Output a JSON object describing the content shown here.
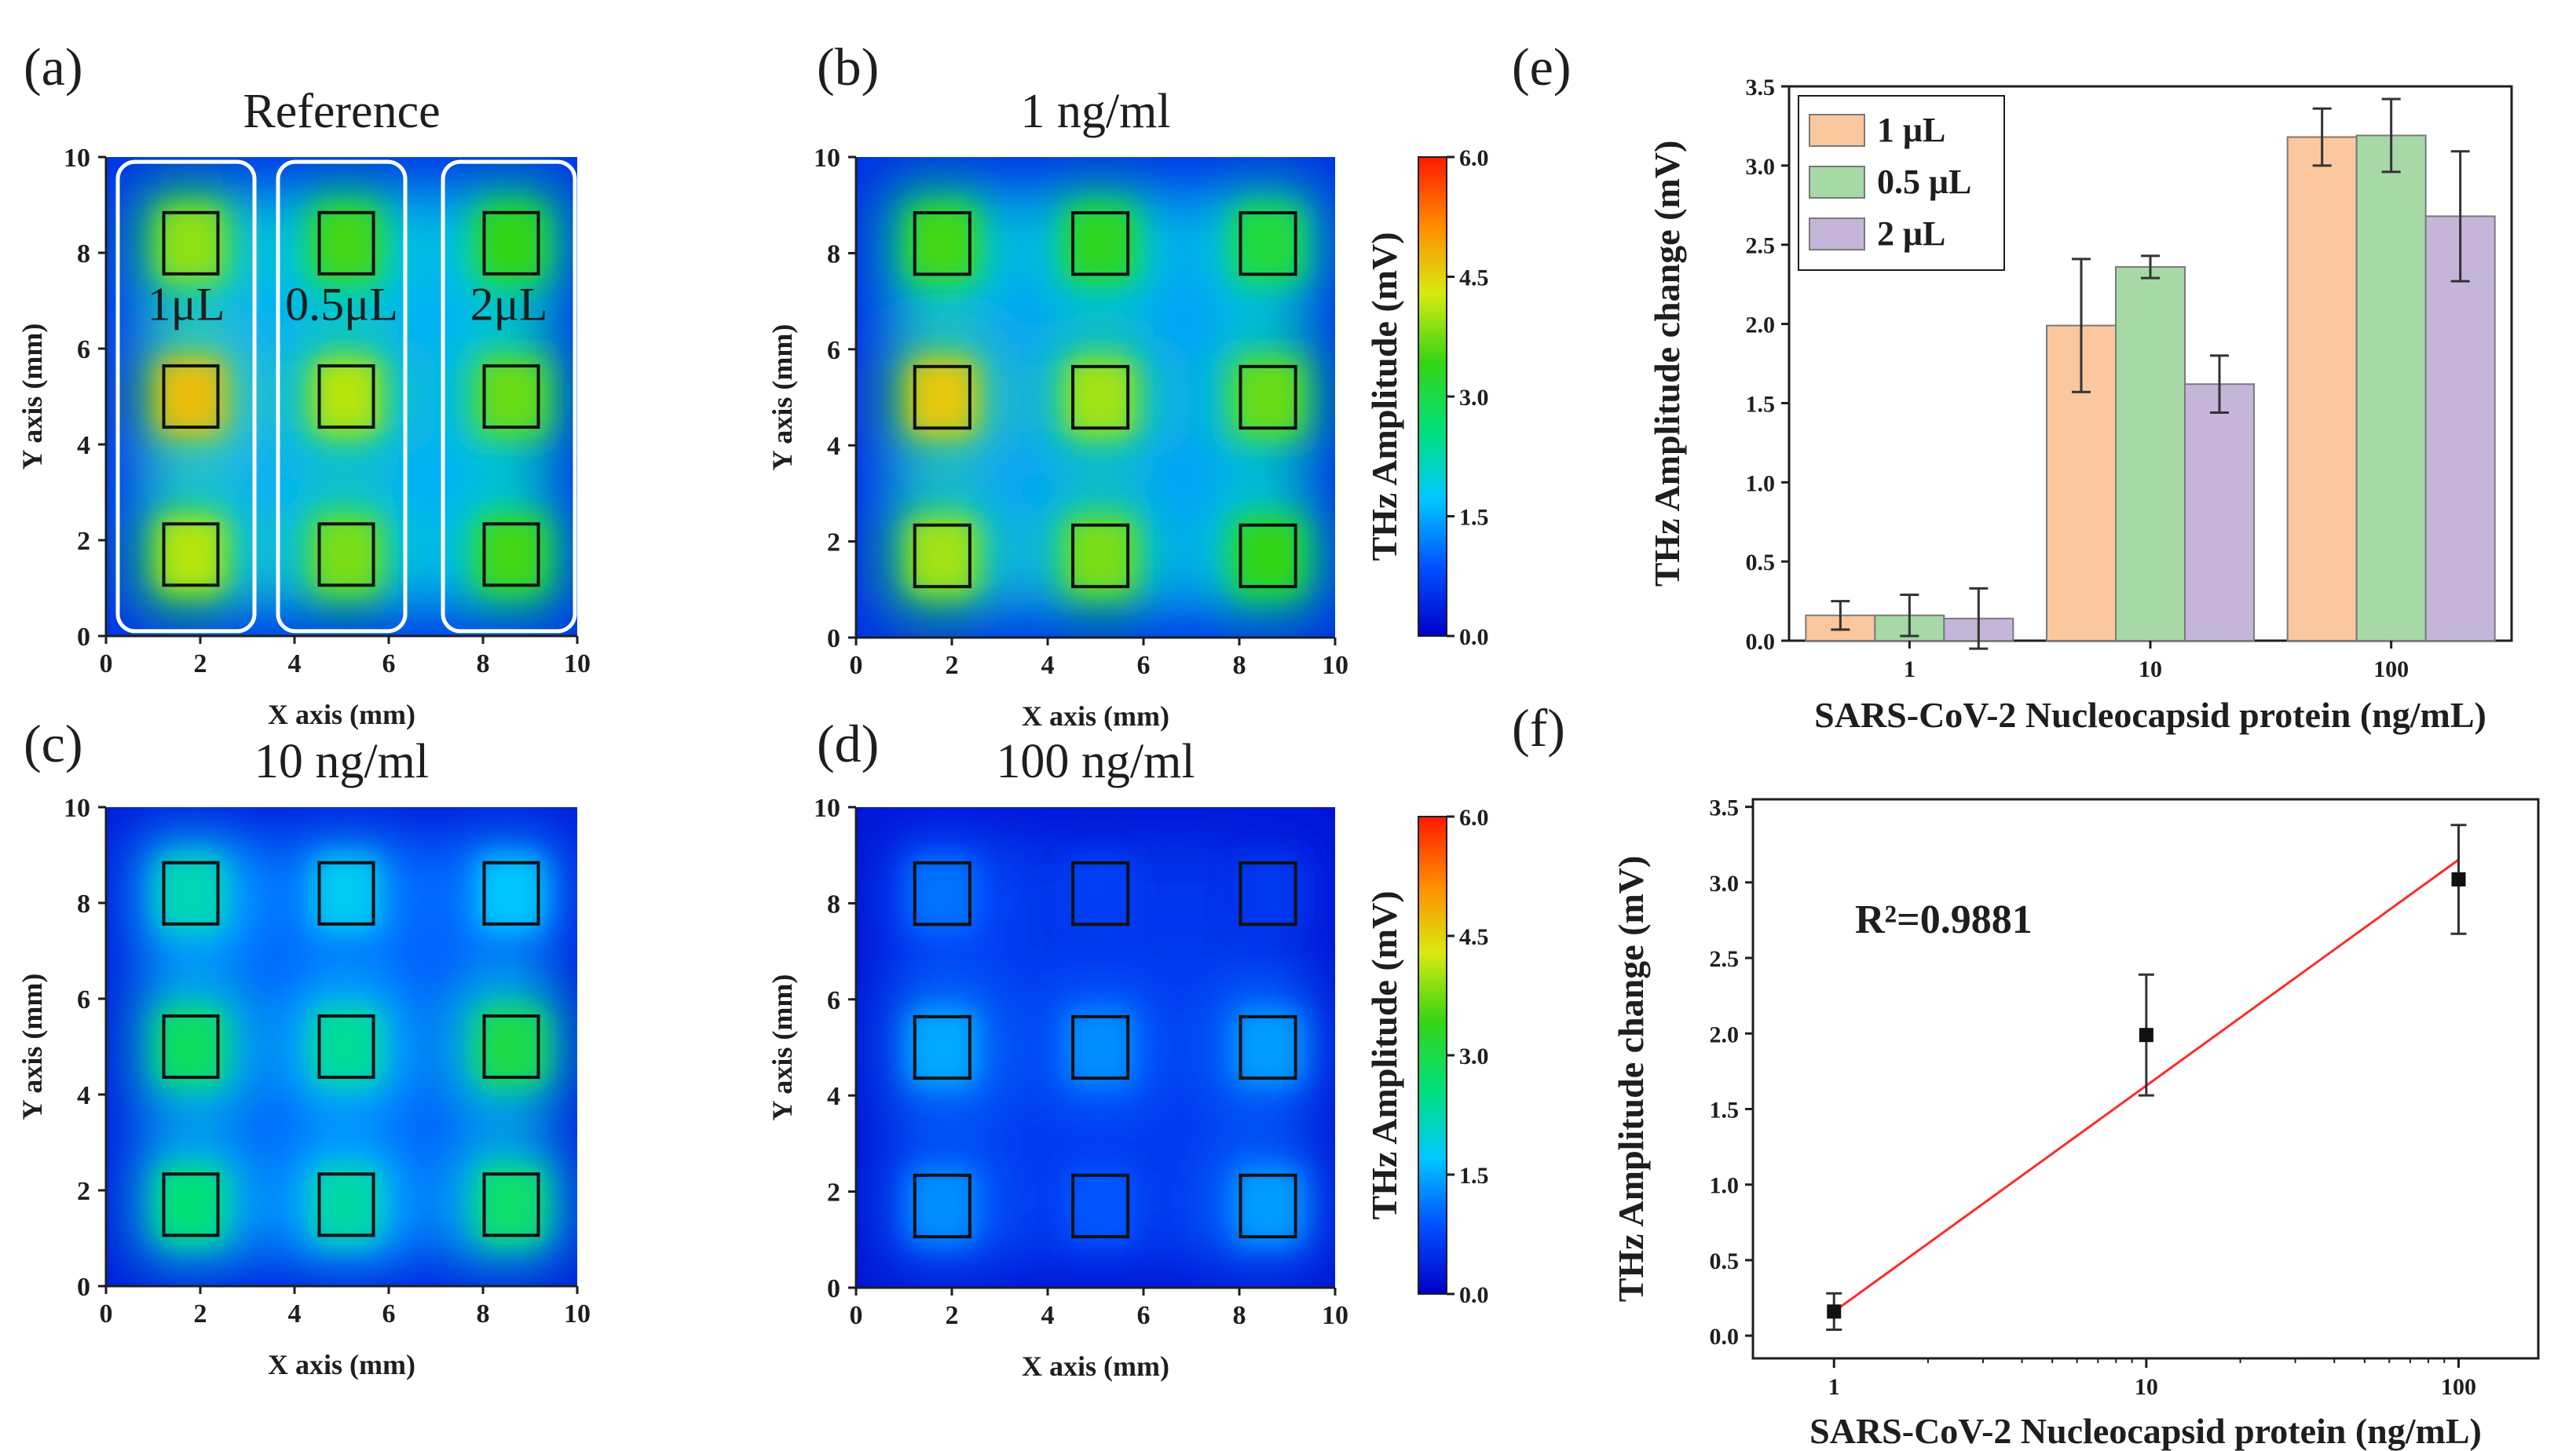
{
  "figure": {
    "panel_labels": {
      "a": "(a)",
      "b": "(b)",
      "c": "(c)",
      "d": "(d)",
      "e": "(e)",
      "f": "(f)"
    },
    "colorbar": {
      "label": "THz Amplitude (mV)",
      "ticks": [
        "6.0",
        "4.5",
        "3.0",
        "1.5",
        "0.0"
      ],
      "colors": [
        "#0000c8",
        "#0050ff",
        "#00c8ff",
        "#00e07a",
        "#35d415",
        "#d8ea10",
        "#ff8c00",
        "#ff1a00"
      ]
    }
  },
  "chart_data": [
    {
      "type": "heatmap",
      "panel": "a",
      "title": "Reference",
      "xlabel": "X axis (mm)",
      "ylabel": "Y axis (mm)",
      "xlim": [
        0,
        10
      ],
      "ylim": [
        0,
        10
      ],
      "xticks": [
        "0",
        "2",
        "4",
        "6",
        "8",
        "10"
      ],
      "yticks": [
        "0",
        "2",
        "4",
        "6",
        "8",
        "10"
      ],
      "group_labels": [
        "1μL",
        "0.5μL",
        "2μL"
      ],
      "spot_x": [
        1.8,
        5.1,
        8.6
      ],
      "spot_y": [
        8.2,
        5.0,
        1.7
      ],
      "spot_amplitude": [
        [
          3.9,
          3.5,
          3.4
        ],
        [
          4.7,
          4.1,
          3.7
        ],
        [
          4.1,
          3.8,
          3.5
        ]
      ],
      "background_amplitude": 1.5
    },
    {
      "type": "heatmap",
      "panel": "b",
      "title": "1 ng/ml",
      "xlabel": "X axis (mm)",
      "ylabel": "Y axis (mm)",
      "xlim": [
        0,
        10
      ],
      "ylim": [
        0,
        10
      ],
      "xticks": [
        "0",
        "2",
        "4",
        "6",
        "8",
        "10"
      ],
      "yticks": [
        "0",
        "2",
        "4",
        "6",
        "8",
        "10"
      ],
      "spot_x": [
        1.8,
        5.1,
        8.6
      ],
      "spot_y": [
        8.2,
        5.0,
        1.7
      ],
      "spot_amplitude": [
        [
          3.5,
          3.3,
          3.1
        ],
        [
          4.6,
          4.0,
          3.7
        ],
        [
          4.0,
          3.8,
          3.4
        ]
      ],
      "background_amplitude": 1.4
    },
    {
      "type": "heatmap",
      "panel": "c",
      "title": "10 ng/ml",
      "xlabel": "X axis (mm)",
      "ylabel": "Y axis (mm)",
      "xlim": [
        0,
        10
      ],
      "ylim": [
        0,
        10
      ],
      "xticks": [
        "0",
        "2",
        "4",
        "6",
        "8",
        "10"
      ],
      "yticks": [
        "0",
        "2",
        "4",
        "6",
        "8",
        "10"
      ],
      "spot_x": [
        1.8,
        5.1,
        8.6
      ],
      "spot_y": [
        8.2,
        5.0,
        1.7
      ],
      "spot_amplitude": [
        [
          2.2,
          1.8,
          1.7
        ],
        [
          2.8,
          2.4,
          3.0
        ],
        [
          2.6,
          2.3,
          2.7
        ]
      ],
      "background_amplitude": 0.9
    },
    {
      "type": "heatmap",
      "panel": "d",
      "title": "100 ng/ml",
      "xlabel": "X axis (mm)",
      "ylabel": "Y axis (mm)",
      "xlim": [
        0,
        10
      ],
      "ylim": [
        0,
        10
      ],
      "xticks": [
        "0",
        "2",
        "4",
        "6",
        "8",
        "10"
      ],
      "yticks": [
        "0",
        "2",
        "4",
        "6",
        "8",
        "10"
      ],
      "spot_x": [
        1.8,
        5.1,
        8.6
      ],
      "spot_y": [
        8.2,
        5.0,
        1.7
      ],
      "spot_amplitude": [
        [
          1.1,
          0.7,
          0.6
        ],
        [
          1.5,
          1.3,
          1.4
        ],
        [
          1.3,
          0.9,
          1.4
        ]
      ],
      "background_amplitude": 0.6
    },
    {
      "type": "bar",
      "panel": "e",
      "xlabel": "SARS-CoV-2 Nucleocapsid protein (ng/mL)",
      "ylabel": "THz Amplitude  change (mV)",
      "categories": [
        "1",
        "10",
        "100"
      ],
      "ylim": [
        0,
        3.5
      ],
      "yticks": [
        "0.0",
        "0.5",
        "1.0",
        "1.5",
        "2.0",
        "2.5",
        "3.0",
        "3.5"
      ],
      "legend": "top-left",
      "series": [
        {
          "name": "1 μL",
          "color": "#fbc79e",
          "values": [
            0.16,
            1.99,
            3.18
          ],
          "errors": [
            0.09,
            0.42,
            0.18
          ]
        },
        {
          "name": "0.5 μL",
          "color": "#a6d9a6",
          "values": [
            0.16,
            2.36,
            3.19
          ],
          "errors": [
            0.13,
            0.07,
            0.23
          ]
        },
        {
          "name": "2 μL",
          "color": "#c5b6d9",
          "values": [
            0.14,
            1.62,
            2.68
          ],
          "errors": [
            0.19,
            0.18,
            0.41
          ]
        }
      ]
    },
    {
      "type": "scatter",
      "panel": "f",
      "xlabel": "SARS-CoV-2 Nucleocapsid protein (ng/mL)",
      "ylabel": "THz Amplitude change (mV)",
      "x_scale": "log",
      "xlim": [
        0.55,
        180
      ],
      "ylim": [
        -0.15,
        3.55
      ],
      "xticks": [
        "1",
        "10",
        "100"
      ],
      "yticks": [
        "0.0",
        "0.5",
        "1.0",
        "1.5",
        "2.0",
        "2.5",
        "3.0",
        "3.5"
      ],
      "x": [
        1,
        10,
        100
      ],
      "y": [
        0.16,
        1.99,
        3.02
      ],
      "errors": [
        0.12,
        0.4,
        0.36
      ],
      "fit": {
        "x": [
          1,
          100
        ],
        "y": [
          0.16,
          3.15
        ],
        "color": "#ff2a2a"
      },
      "annotation": "R²=0.9881"
    }
  ]
}
